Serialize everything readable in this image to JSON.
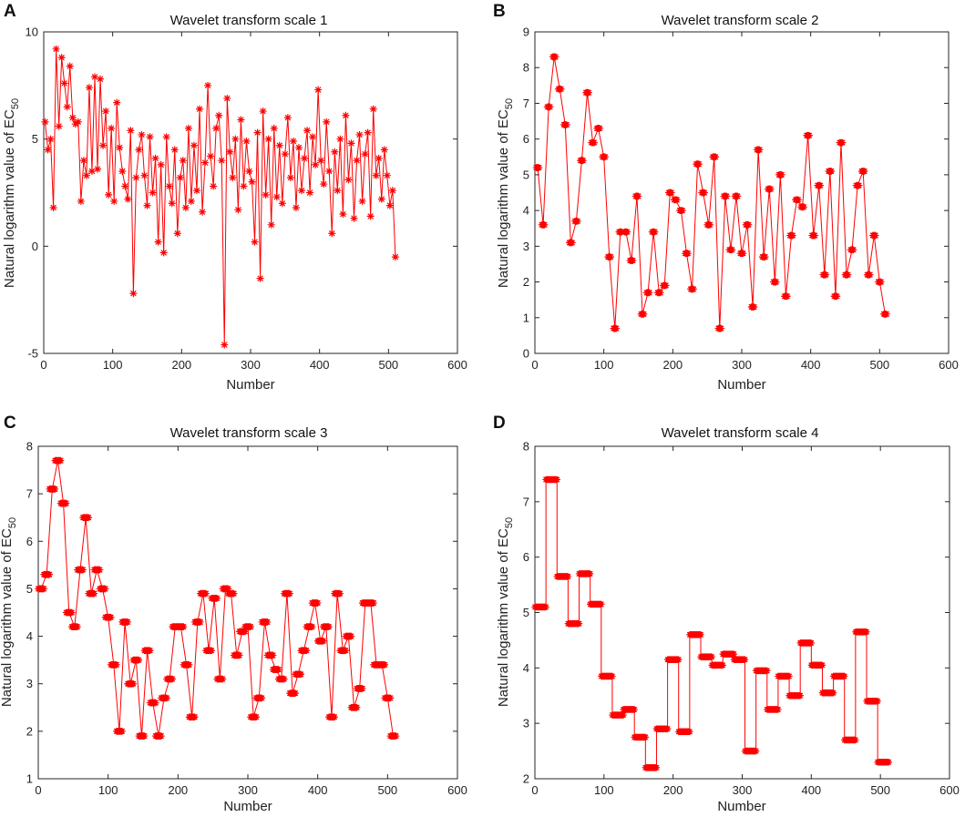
{
  "colors": {
    "series": "#ff0000",
    "axis": "#262626"
  },
  "chart_data": [
    {
      "panel": "A",
      "type": "line",
      "title": "Wavelet transform scale 1",
      "xlabel": "Number",
      "ylabel_main": "Natural logarithm value of EC",
      "ylabel_sub": "50",
      "xlim": [
        0,
        600
      ],
      "ylim": [
        -5,
        10
      ],
      "xticks": [
        0,
        100,
        200,
        300,
        400,
        500,
        600
      ],
      "yticks": [
        -5,
        0,
        5,
        10
      ],
      "x": [
        2,
        6,
        10,
        14,
        18,
        22,
        26,
        30,
        34,
        38,
        42,
        46,
        50,
        54,
        58,
        62,
        66,
        70,
        74,
        78,
        82,
        86,
        90,
        94,
        98,
        102,
        106,
        110,
        114,
        118,
        122,
        126,
        130,
        134,
        138,
        142,
        146,
        150,
        154,
        158,
        162,
        166,
        170,
        174,
        178,
        182,
        186,
        190,
        194,
        198,
        202,
        206,
        210,
        214,
        218,
        222,
        226,
        230,
        234,
        238,
        242,
        246,
        250,
        254,
        258,
        262,
        266,
        270,
        274,
        278,
        282,
        286,
        290,
        294,
        298,
        302,
        306,
        310,
        314,
        318,
        322,
        326,
        330,
        334,
        338,
        342,
        346,
        350,
        354,
        358,
        362,
        366,
        370,
        374,
        378,
        382,
        386,
        390,
        394,
        398,
        402,
        406,
        410,
        414,
        418,
        422,
        426,
        430,
        434,
        438,
        442,
        446,
        450,
        454,
        458,
        462,
        466,
        470,
        474,
        478,
        482,
        486,
        490,
        494,
        498,
        502,
        506,
        510
      ],
      "values": [
        5.8,
        4.5,
        5.0,
        1.8,
        9.2,
        5.6,
        8.8,
        7.6,
        6.5,
        8.4,
        6.0,
        5.7,
        5.8,
        2.1,
        4.0,
        3.3,
        7.4,
        3.5,
        7.9,
        3.6,
        7.8,
        4.7,
        6.3,
        2.4,
        5.5,
        2.1,
        6.7,
        4.6,
        3.5,
        2.8,
        2.2,
        5.4,
        -2.2,
        3.2,
        4.5,
        5.2,
        3.3,
        1.9,
        5.1,
        2.5,
        4.1,
        0.2,
        3.8,
        -0.3,
        5.1,
        2.8,
        2.0,
        4.5,
        0.6,
        3.2,
        4.0,
        1.8,
        5.5,
        2.1,
        4.7,
        2.6,
        6.4,
        1.6,
        3.9,
        7.5,
        4.2,
        2.8,
        5.5,
        6.1,
        4.0,
        -4.6,
        6.9,
        4.4,
        3.2,
        5.0,
        1.7,
        5.9,
        2.8,
        4.9,
        3.5,
        3.0,
        0.2,
        5.3,
        -1.5,
        6.3,
        2.4,
        5.0,
        1.0,
        5.5,
        2.3,
        4.7,
        2.0,
        4.3,
        6.0,
        3.2,
        4.9,
        1.8,
        4.6,
        2.6,
        4.1,
        5.4,
        2.5,
        5.1,
        3.8,
        7.3,
        4.0,
        2.9,
        5.8,
        3.5,
        0.6,
        4.4,
        2.6,
        5.0,
        1.5,
        6.1,
        3.1,
        4.8,
        1.3,
        4.0,
        5.2,
        2.1,
        4.3,
        5.3,
        1.4,
        6.4,
        3.3,
        4.1,
        2.2,
        4.5,
        3.3,
        1.9,
        2.6,
        -0.5
      ]
    },
    {
      "panel": "B",
      "type": "line",
      "title": "Wavelet transform scale 2",
      "xlabel": "Number",
      "ylabel_main": "Natural logarithm value of EC",
      "ylabel_sub": "50",
      "xlim": [
        0,
        600
      ],
      "ylim": [
        0,
        9
      ],
      "xticks": [
        0,
        100,
        200,
        300,
        400,
        500,
        600
      ],
      "yticks": [
        0,
        1,
        2,
        3,
        4,
        5,
        6,
        7,
        8,
        9
      ],
      "x": [
        4,
        12,
        20,
        28,
        36,
        44,
        52,
        60,
        68,
        76,
        84,
        92,
        100,
        108,
        116,
        124,
        132,
        140,
        148,
        156,
        164,
        172,
        180,
        188,
        196,
        204,
        212,
        220,
        228,
        236,
        244,
        252,
        260,
        268,
        276,
        284,
        292,
        300,
        308,
        316,
        324,
        332,
        340,
        348,
        356,
        364,
        372,
        380,
        388,
        396,
        404,
        412,
        420,
        428,
        436,
        444,
        452,
        460,
        468,
        476,
        484,
        492,
        500,
        508
      ],
      "values": [
        5.2,
        3.6,
        6.9,
        8.3,
        7.4,
        6.4,
        3.1,
        3.7,
        5.4,
        7.3,
        5.9,
        6.3,
        5.5,
        2.7,
        0.7,
        3.4,
        3.4,
        2.6,
        4.4,
        1.1,
        1.7,
        3.4,
        1.7,
        1.9,
        4.5,
        4.3,
        4.0,
        2.8,
        1.8,
        5.3,
        4.5,
        3.6,
        5.5,
        0.7,
        4.4,
        2.9,
        4.4,
        2.8,
        3.6,
        1.3,
        5.7,
        2.7,
        4.6,
        2.0,
        5.0,
        1.6,
        3.3,
        4.3,
        4.1,
        6.1,
        3.3,
        4.7,
        2.2,
        5.1,
        1.6,
        5.9,
        2.2,
        2.9,
        4.7,
        5.1,
        2.2,
        3.3,
        2.0,
        1.1
      ]
    },
    {
      "panel": "C",
      "type": "line",
      "title": "Wavelet transform scale 3",
      "xlabel": "Number",
      "ylabel_main": "Natural logarithm value of EC",
      "ylabel_sub": "50",
      "xlim": [
        0,
        600
      ],
      "ylim": [
        1,
        8
      ],
      "xticks": [
        0,
        100,
        200,
        300,
        400,
        500,
        600
      ],
      "yticks": [
        1,
        2,
        3,
        4,
        5,
        6,
        7,
        8
      ],
      "x": [
        4,
        12,
        20,
        28,
        36,
        44,
        52,
        60,
        68,
        76,
        84,
        92,
        100,
        108,
        116,
        124,
        132,
        140,
        148,
        156,
        164,
        172,
        180,
        188,
        196,
        204,
        212,
        220,
        228,
        236,
        244,
        252,
        260,
        268,
        276,
        284,
        292,
        300,
        308,
        316,
        324,
        332,
        340,
        348,
        356,
        364,
        372,
        380,
        388,
        396,
        404,
        412,
        420,
        428,
        436,
        444,
        452,
        460,
        468,
        476,
        484,
        492,
        500,
        508
      ],
      "values": [
        5.0,
        5.3,
        7.1,
        7.7,
        6.8,
        4.5,
        4.2,
        5.4,
        6.5,
        4.9,
        5.4,
        5.0,
        4.4,
        3.4,
        2.0,
        4.3,
        3.0,
        3.5,
        1.9,
        3.7,
        2.6,
        1.9,
        2.7,
        3.1,
        4.2,
        4.2,
        3.4,
        2.3,
        4.3,
        4.9,
        3.7,
        4.8,
        3.1,
        5.0,
        4.9,
        3.6,
        4.1,
        4.2,
        2.3,
        2.7,
        4.3,
        3.6,
        3.3,
        3.1,
        4.9,
        2.8,
        3.2,
        3.7,
        4.2,
        4.7,
        3.9,
        4.2,
        2.3,
        4.9,
        3.7,
        4.0,
        2.5,
        2.9,
        4.7,
        4.7,
        3.4,
        3.4,
        2.7,
        1.9
      ]
    },
    {
      "panel": "D",
      "type": "line",
      "title": "Wavelet transform scale 4",
      "xlabel": "Number",
      "ylabel_main": "Natural logarithm value of EC",
      "ylabel_sub": "50",
      "xlim": [
        0,
        600
      ],
      "ylim": [
        2,
        8
      ],
      "xticks": [
        0,
        100,
        200,
        300,
        400,
        500,
        600
      ],
      "yticks": [
        2,
        3,
        4,
        5,
        6,
        7,
        8
      ],
      "segments": [
        {
          "x0": 0,
          "x1": 16,
          "v": 5.1
        },
        {
          "x0": 16,
          "x1": 32,
          "v": 7.4
        },
        {
          "x0": 32,
          "x1": 48,
          "v": 5.65
        },
        {
          "x0": 48,
          "x1": 64,
          "v": 4.8
        },
        {
          "x0": 64,
          "x1": 80,
          "v": 5.7
        },
        {
          "x0": 80,
          "x1": 96,
          "v": 5.15
        },
        {
          "x0": 96,
          "x1": 112,
          "v": 3.85
        },
        {
          "x0": 112,
          "x1": 128,
          "v": 3.15
        },
        {
          "x0": 128,
          "x1": 144,
          "v": 3.25
        },
        {
          "x0": 144,
          "x1": 160,
          "v": 2.75
        },
        {
          "x0": 160,
          "x1": 176,
          "v": 2.2
        },
        {
          "x0": 176,
          "x1": 192,
          "v": 2.9
        },
        {
          "x0": 192,
          "x1": 208,
          "v": 4.15
        },
        {
          "x0": 208,
          "x1": 224,
          "v": 2.85
        },
        {
          "x0": 224,
          "x1": 240,
          "v": 4.6
        },
        {
          "x0": 240,
          "x1": 256,
          "v": 4.2
        },
        {
          "x0": 256,
          "x1": 272,
          "v": 4.05
        },
        {
          "x0": 272,
          "x1": 288,
          "v": 4.25
        },
        {
          "x0": 288,
          "x1": 304,
          "v": 4.15
        },
        {
          "x0": 304,
          "x1": 320,
          "v": 2.5
        },
        {
          "x0": 320,
          "x1": 336,
          "v": 3.95
        },
        {
          "x0": 336,
          "x1": 352,
          "v": 3.25
        },
        {
          "x0": 352,
          "x1": 368,
          "v": 3.85
        },
        {
          "x0": 368,
          "x1": 384,
          "v": 3.5
        },
        {
          "x0": 384,
          "x1": 400,
          "v": 4.45
        },
        {
          "x0": 400,
          "x1": 416,
          "v": 4.05
        },
        {
          "x0": 416,
          "x1": 432,
          "v": 3.55
        },
        {
          "x0": 432,
          "x1": 448,
          "v": 3.85
        },
        {
          "x0": 448,
          "x1": 464,
          "v": 2.7
        },
        {
          "x0": 464,
          "x1": 480,
          "v": 4.65
        },
        {
          "x0": 480,
          "x1": 496,
          "v": 3.4
        },
        {
          "x0": 496,
          "x1": 512,
          "v": 2.3
        }
      ]
    }
  ]
}
